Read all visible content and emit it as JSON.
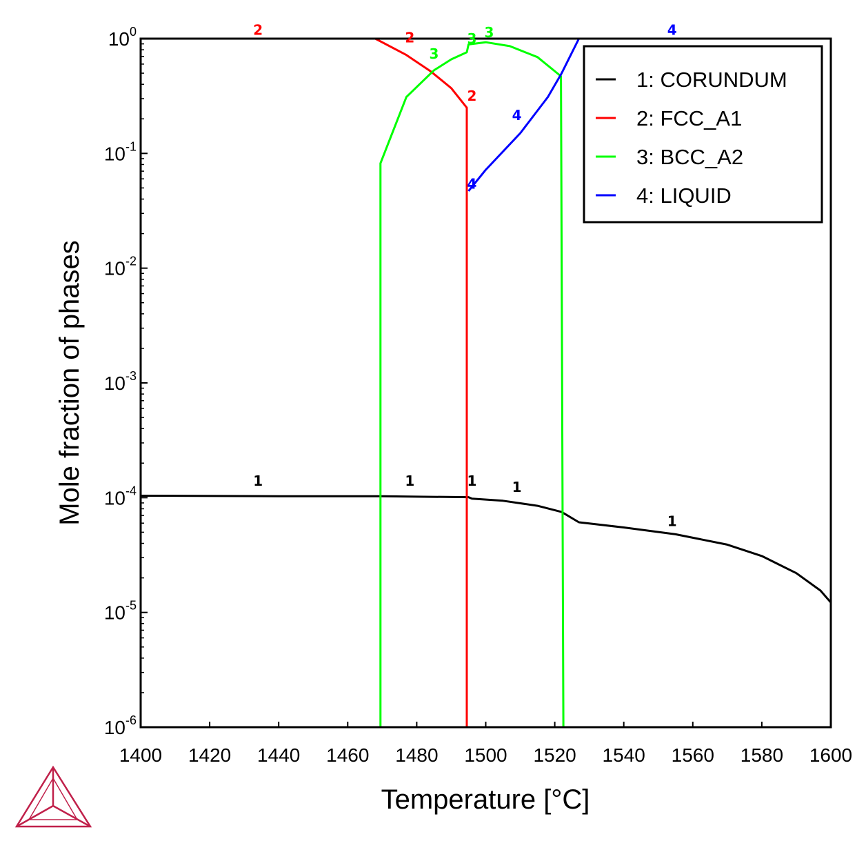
{
  "chart_data": {
    "type": "line",
    "xlabel": "Temperature [°C]",
    "ylabel": "Mole fraction of phases",
    "xlim": [
      1400,
      1600
    ],
    "ylim": [
      1e-06,
      1
    ],
    "yscale": "log",
    "grid": false,
    "legend_placement": "top-right",
    "x_ticks": [
      "1400",
      "1420",
      "1440",
      "1460",
      "1480",
      "1500",
      "1520",
      "1540",
      "1560",
      "1580",
      "1600"
    ],
    "y_ticks": [
      {
        "base": "10",
        "exp": "0",
        "value": 1
      },
      {
        "base": "10",
        "exp": "-1",
        "value": 0.1
      },
      {
        "base": "10",
        "exp": "-2",
        "value": 0.01
      },
      {
        "base": "10",
        "exp": "-3",
        "value": 0.001
      },
      {
        "base": "10",
        "exp": "-4",
        "value": 0.0001
      },
      {
        "base": "10",
        "exp": "-5",
        "value": 1e-05
      },
      {
        "base": "10",
        "exp": "-6",
        "value": 1e-06
      }
    ],
    "series": [
      {
        "name": "1: CORUNDUM",
        "id": "1",
        "color": "#000000",
        "points": [
          [
            1400,
            0.000104
          ],
          [
            1440,
            0.000103
          ],
          [
            1470,
            0.000103
          ],
          [
            1480,
            0.000102
          ],
          [
            1495,
            0.000101
          ],
          [
            1496,
            9.8e-05
          ],
          [
            1505,
            9.4e-05
          ],
          [
            1515,
            8.5e-05
          ],
          [
            1522,
            7.5e-05
          ],
          [
            1527,
            6.1e-05
          ],
          [
            1540,
            5.5e-05
          ],
          [
            1555,
            4.8e-05
          ],
          [
            1570,
            3.9e-05
          ],
          [
            1580,
            3.1e-05
          ],
          [
            1590,
            2.2e-05
          ],
          [
            1597,
            1.55e-05
          ],
          [
            1600,
            1.22e-05
          ]
        ],
        "labels": [
          [
            1434,
            0.000124
          ],
          [
            1478,
            0.000124
          ],
          [
            1496,
            0.000124
          ],
          [
            1509,
            0.000109
          ],
          [
            1554,
            5.5e-05
          ]
        ]
      },
      {
        "name": "2: FCC_A1",
        "id": "2",
        "color": "#ff0000",
        "points": [
          [
            1468,
            1.0
          ],
          [
            1477,
            0.72
          ],
          [
            1484,
            0.52
          ],
          [
            1490,
            0.37
          ],
          [
            1494.5,
            0.25
          ],
          [
            1494.5,
            1e-06
          ]
        ],
        "labels": [
          [
            1434,
            1.05
          ],
          [
            1478,
            0.9
          ],
          [
            1496,
            0.28
          ]
        ]
      },
      {
        "name": "3: BCC_A2",
        "id": "3",
        "color": "#00ff00",
        "points": [
          [
            1469.5,
            1e-06
          ],
          [
            1469.5,
            0.082
          ],
          [
            1477,
            0.31
          ],
          [
            1485,
            0.53
          ],
          [
            1490,
            0.66
          ],
          [
            1494.5,
            0.76
          ],
          [
            1495,
            0.89
          ],
          [
            1500,
            0.93
          ],
          [
            1507,
            0.86
          ],
          [
            1515,
            0.69
          ],
          [
            1521.8,
            0.47
          ],
          [
            1522.5,
            1e-06
          ]
        ],
        "labels": [
          [
            1485,
            0.65
          ],
          [
            1496,
            0.88
          ],
          [
            1501,
            1.0
          ]
        ]
      },
      {
        "name": "4: LIQUID",
        "id": "4",
        "color": "#0000ff",
        "points": [
          [
            1495,
            0.047
          ],
          [
            1500,
            0.072
          ],
          [
            1510,
            0.15
          ],
          [
            1518,
            0.31
          ],
          [
            1522,
            0.5
          ],
          [
            1527,
            1.0
          ]
        ],
        "labels": [
          [
            1554,
            1.05
          ],
          [
            1509,
            0.19
          ],
          [
            1496,
            0.048
          ]
        ]
      }
    ]
  },
  "logo": {
    "name": "thermo-calc-logo",
    "color": "#c0204a"
  }
}
